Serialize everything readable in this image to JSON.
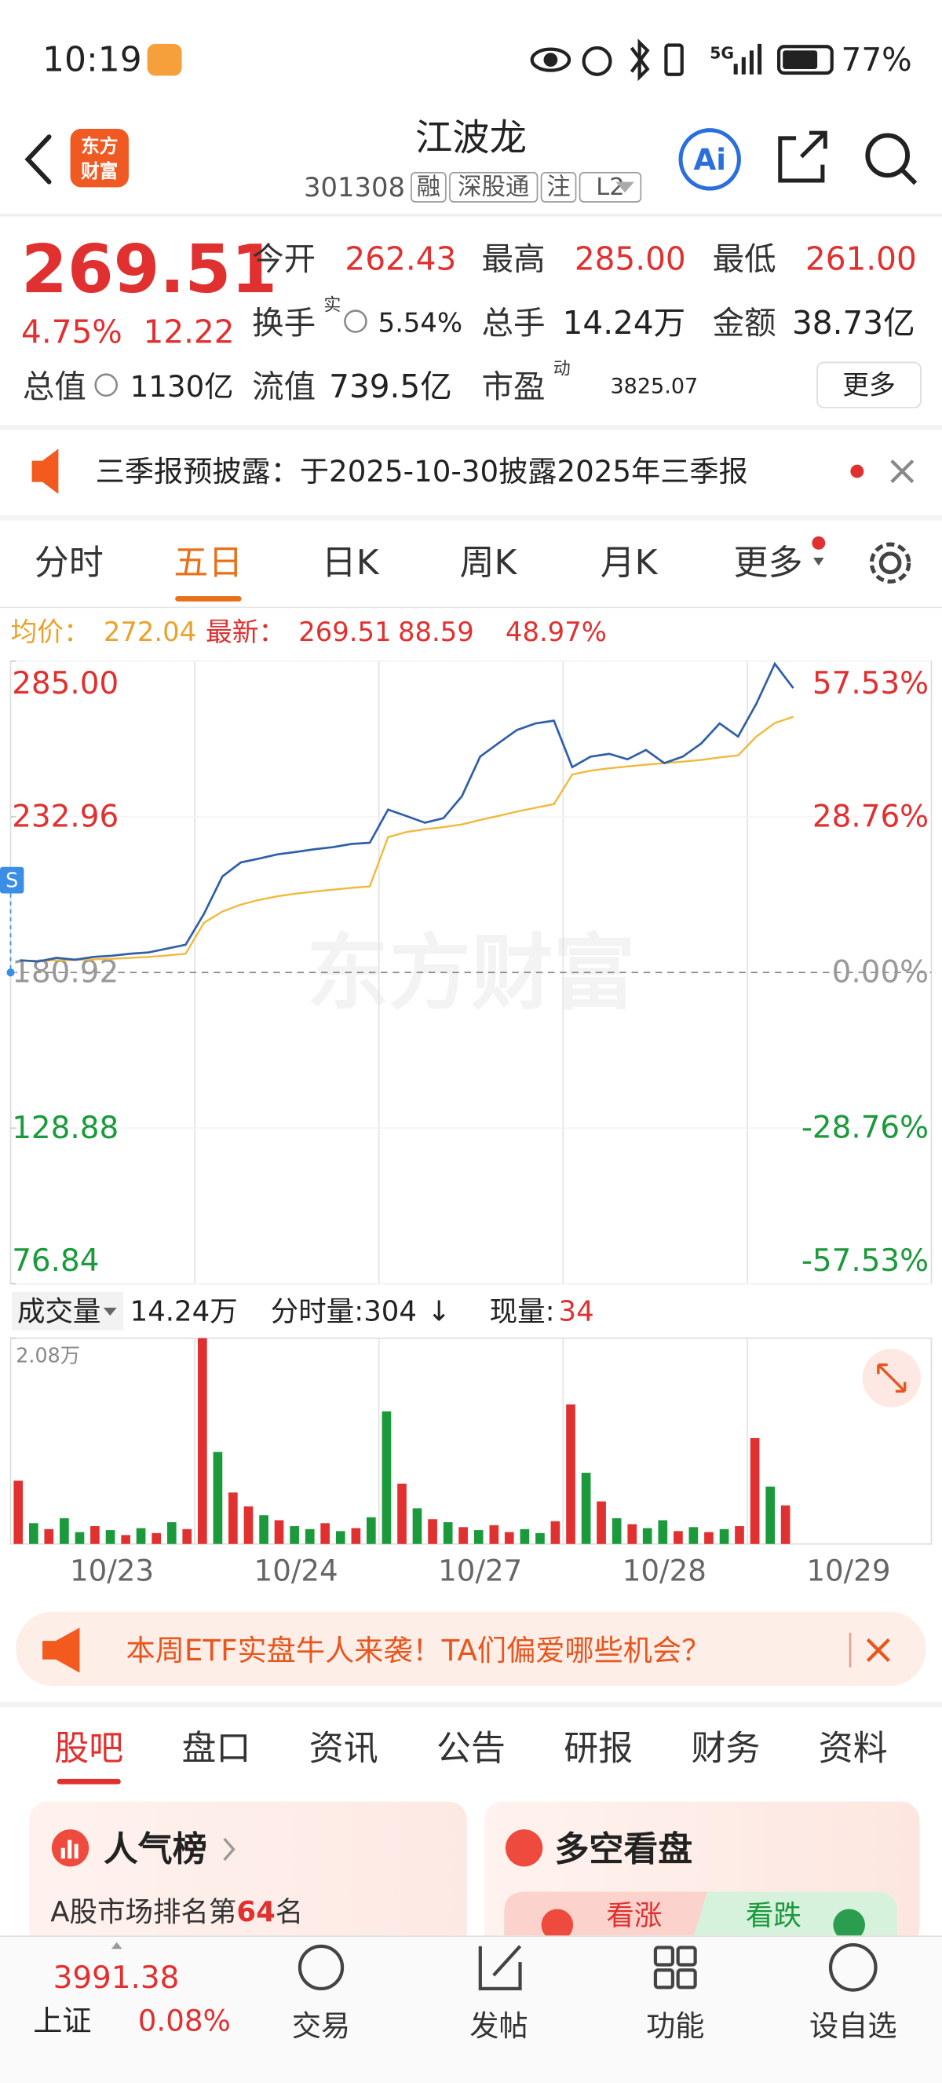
{
  "status_bar": {
    "time": "10:19",
    "network": "5G",
    "battery": "77%"
  },
  "header": {
    "logo": [
      "东方",
      "财富"
    ],
    "title": "江波龙",
    "code": "301308",
    "tags": [
      "融",
      "深股通",
      "注",
      "L2"
    ],
    "ai": "Ai"
  },
  "quote": {
    "price": "269.51",
    "change_pct": "4.75%",
    "change": "12.22",
    "fields": [
      {
        "label": "今开",
        "value": "262.43"
      },
      {
        "label": "最高",
        "value": "285.00"
      },
      {
        "label": "最低",
        "value": "261.00"
      },
      {
        "label": "换手",
        "sup": "实",
        "value": "5.54%"
      },
      {
        "label": "总手",
        "value": "14.24万"
      },
      {
        "label": "金额",
        "value": "38.73亿"
      },
      {
        "label": "总值",
        "value": "1130亿"
      },
      {
        "label": "流值",
        "value": "739.5亿"
      },
      {
        "label": "市盈",
        "sup": "动",
        "value": "3825.07"
      }
    ],
    "more": "更多"
  },
  "notice": "三季报预披露：于2025-10-30披露2025年三季报",
  "tabs": {
    "items": [
      "分时",
      "五日",
      "日K",
      "周K",
      "月K",
      "更多"
    ],
    "active": 1
  },
  "info": {
    "avg_label": "均价：",
    "avg": "272.04",
    "latest_label": "最新：",
    "latest": "269.51",
    "change": "88.59",
    "pct": "48.97%"
  },
  "chart": {
    "type": "line",
    "watermark": "东方财富",
    "marker": "S",
    "up_color": "#e0302f",
    "down_color": "#1a9a3a",
    "flat_color": "#999999",
    "ylim": [
      76.84,
      285
    ],
    "yticks": [
      {
        "value": 285,
        "label": "285.00"
      },
      232.96,
      180.92,
      128.88,
      76.84
    ],
    "y2lim": [
      -57.53,
      57.53
    ],
    "y2ticks": [
      {
        "value": 57.53,
        "label": "57.53%"
      },
      {
        "value": 28.76,
        "label": "28.76%"
      },
      {
        "value": 0,
        "label": "0.00%"
      },
      {
        "value": -28.76,
        "label": "-28.76%"
      },
      {
        "value": -57.53,
        "label": "-57.53%"
      }
    ],
    "series": [
      {
        "color": "#2f5fa8",
        "values": [
          185.0,
          184.6,
          185.8,
          185.2,
          186.1,
          186.5,
          187.2,
          187.6,
          188.9,
          190.2,
          200.5,
          213.0,
          217.7,
          219.0,
          220.4,
          221.2,
          222.1,
          222.8,
          223.9,
          224.3,
          235.4,
          233.2,
          231.0,
          232.5,
          239.8,
          253.1,
          257.6,
          262.0,
          264.2,
          265.1,
          249.6,
          253.1,
          254.0,
          252.2,
          255.3,
          250.9,
          253.1,
          257.5,
          264.2,
          259.8,
          270.8,
          284.1,
          276.0
        ]
      },
      {
        "color": "#f0b93a",
        "values": [
          184.9,
          184.8,
          185.0,
          185.1,
          185.3,
          185.5,
          185.8,
          186.1,
          186.6,
          187.2,
          197.5,
          201.3,
          203.6,
          205.2,
          206.4,
          207.3,
          208.0,
          208.6,
          209.2,
          209.7,
          226.2,
          227.9,
          228.8,
          229.5,
          230.4,
          231.9,
          233.3,
          234.7,
          236.0,
          237.2,
          247.1,
          248.4,
          249.2,
          249.8,
          250.4,
          250.9,
          251.4,
          252.0,
          252.8,
          253.5,
          259.8,
          264.3,
          266.4
        ]
      }
    ]
  },
  "volume": {
    "label": "成交量",
    "total": "14.24万",
    "split": "分时量:304",
    "arrow": "↓",
    "now_label": "现量:",
    "now": "34",
    "ylim": [
      0,
      20800
    ],
    "yticks": [
      {
        "value": 20800,
        "label": "2.08万"
      }
    ],
    "values": [
      6400,
      2100,
      1500,
      2600,
      1200,
      1800,
      1400,
      900,
      1600,
      1100,
      2200,
      1500,
      20800,
      9300,
      5200,
      3800,
      2900,
      2400,
      1800,
      1500,
      2100,
      1300,
      1600,
      2700,
      13400,
      6100,
      3600,
      2500,
      2200,
      1700,
      1400,
      1900,
      1200,
      1500,
      1100,
      2300,
      14100,
      7200,
      4300,
      2600,
      2000,
      1600,
      2400,
      1300,
      1700,
      1200,
      1500,
      1800,
      10700,
      5800,
      3900
    ],
    "colors": [
      "#e0302f",
      "#1a9a3a",
      "#e0302f",
      "#1a9a3a",
      "#1a9a3a",
      "#e0302f",
      "#1a9a3a",
      "#e0302f",
      "#1a9a3a",
      "#e0302f",
      "#1a9a3a",
      "#e0302f",
      "#e0302f",
      "#1a9a3a",
      "#e0302f",
      "#e0302f",
      "#1a9a3a",
      "#e0302f",
      "#1a9a3a",
      "#1a9a3a",
      "#e0302f",
      "#1a9a3a",
      "#e0302f",
      "#1a9a3a",
      "#1a9a3a",
      "#e0302f",
      "#1a9a3a",
      "#e0302f",
      "#1a9a3a",
      "#e0302f",
      "#1a9a3a",
      "#e0302f",
      "#e0302f",
      "#1a9a3a",
      "#1a9a3a",
      "#e0302f",
      "#e0302f",
      "#1a9a3a",
      "#e0302f",
      "#1a9a3a",
      "#e0302f",
      "#1a9a3a",
      "#1a9a3a",
      "#e0302f",
      "#1a9a3a",
      "#e0302f",
      "#1a9a3a",
      "#e0302f",
      "#e0302f",
      "#1a9a3a",
      "#e0302f"
    ]
  },
  "dates": [
    "10/23",
    "10/24",
    "10/27",
    "10/28",
    "10/29"
  ],
  "banner": "本周ETF实盘牛人来袭！TA们偏爱哪些机会？",
  "sections": {
    "items": [
      "股吧",
      "盘口",
      "资讯",
      "公告",
      "研报",
      "财务",
      "资料"
    ],
    "active": 0
  },
  "cards": [
    {
      "title": "人气榜",
      "text": "A股市场排名第",
      "rank": "64",
      "suffix": "名"
    },
    {
      "title": "多空看盘",
      "bull": "看涨",
      "bear": "看跌"
    }
  ],
  "index": {
    "value": "3991.38",
    "name": "上证",
    "pct": "0.08%"
  },
  "nav": [
    "交易",
    "发帖",
    "功能",
    "设自选"
  ]
}
